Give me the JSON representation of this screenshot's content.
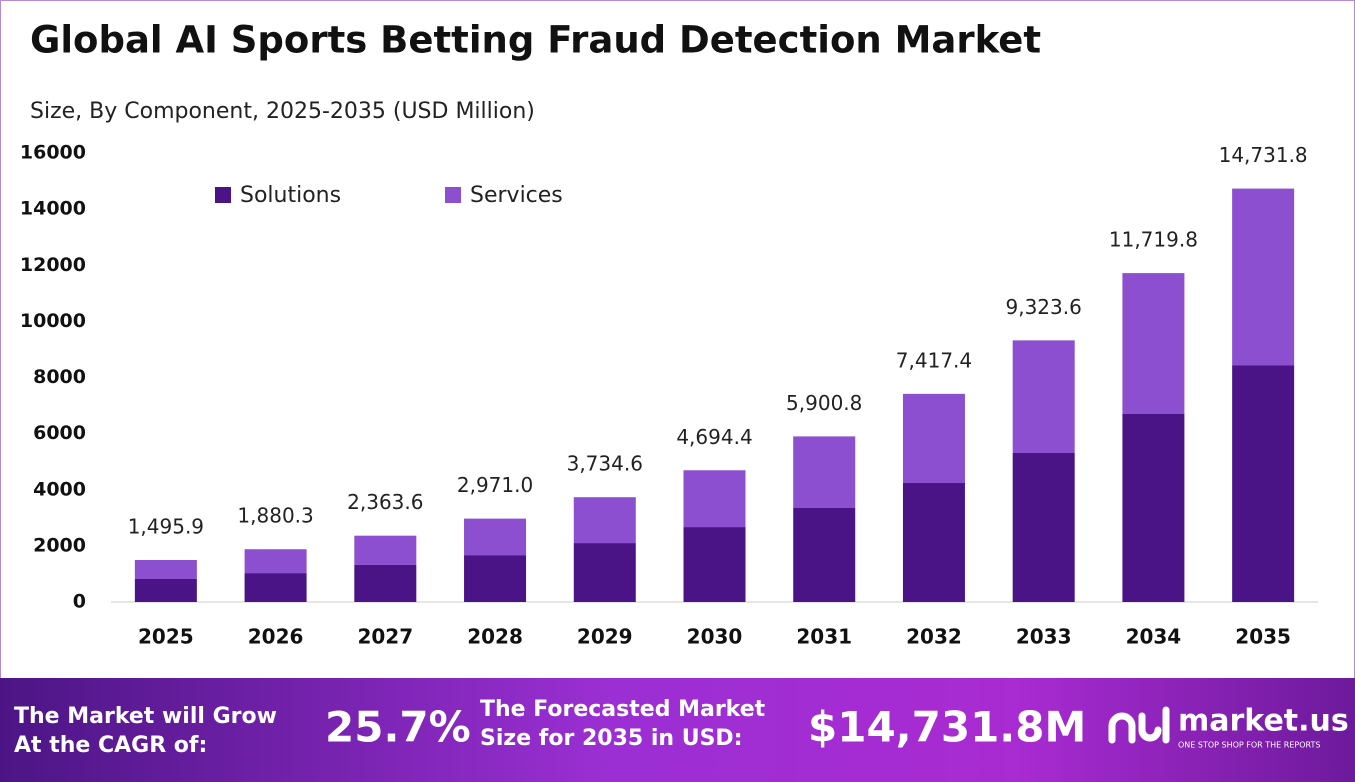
{
  "chart_data": {
    "type": "stacked_bar",
    "title": "Global AI Sports Betting Fraud Detection Market",
    "subtitle": "Size, By Component, 2025-2035 (USD Million)",
    "categories": [
      "2025",
      "2026",
      "2027",
      "2028",
      "2029",
      "2030",
      "2031",
      "2032",
      "2033",
      "2034",
      "2035"
    ],
    "series": [
      {
        "name": "Solutions",
        "color": "#4a1486",
        "values": [
          820,
          1030,
          1320,
          1670,
          2100,
          2670,
          3350,
          4240,
          5310,
          6700,
          8440
        ]
      },
      {
        "name": "Services",
        "color": "#8b4fd0",
        "values": [
          675.9,
          850.3,
          1043.6,
          1301.0,
          1634.6,
          2024.4,
          2550.8,
          3177.4,
          4013.6,
          5019.8,
          6291.8
        ]
      }
    ],
    "totals": [
      1495.9,
      1880.3,
      2363.6,
      2971.0,
      3734.6,
      4694.4,
      5900.8,
      7417.4,
      9323.6,
      11719.8,
      14731.8
    ],
    "total_labels": [
      "1,495.9",
      "1,880.3",
      "2,363.6",
      "2,971.0",
      "3,734.6",
      "4,694.4",
      "5,900.8",
      "7,417.4",
      "9,323.6",
      "11,719.8",
      "14,731.8"
    ],
    "ylim": [
      0,
      16000
    ],
    "yticks": [
      0,
      2000,
      4000,
      6000,
      8000,
      10000,
      12000,
      14000,
      16000
    ],
    "legend": "top-left"
  },
  "footer": {
    "cagr_label": [
      "The Market will Grow",
      "At the CAGR of:"
    ],
    "cagr_value": "25.7%",
    "forecast_label": [
      "The Forecasted Market",
      "Size for 2035 in USD:"
    ],
    "forecast_value": "$14,731.8M",
    "brand": "market.us",
    "tagline": "ONE STOP SHOP FOR THE REPORTS"
  }
}
